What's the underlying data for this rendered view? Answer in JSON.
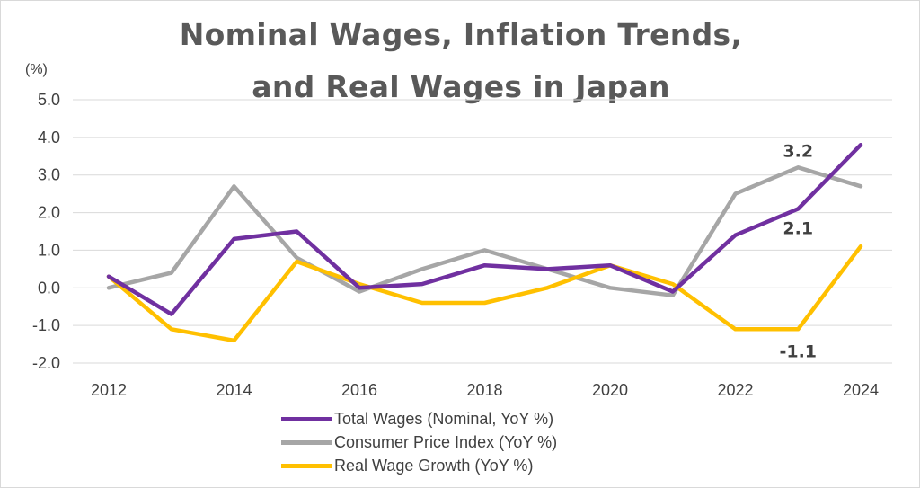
{
  "chart_data": {
    "type": "line",
    "title_line1": "Nominal Wages, Inflation Trends,",
    "title_line2": "and Real Wages in Japan",
    "ylabel": "(%)",
    "xlabel": "",
    "x": [
      2012,
      2013,
      2014,
      2015,
      2016,
      2017,
      2018,
      2019,
      2020,
      2021,
      2022,
      2023,
      2024
    ],
    "x_tick_labels": [
      "2012",
      "2014",
      "2016",
      "2018",
      "2020",
      "2022",
      "2024"
    ],
    "y_tick_labels": [
      "5.0",
      "4.0",
      "3.0",
      "2.0",
      "1.0",
      "0.0",
      "-1.0",
      "-2.0"
    ],
    "ylim": [
      -2.0,
      5.0
    ],
    "grid": true,
    "legend_position": "bottom",
    "series": [
      {
        "name": "Total Wages (Nominal, YoY %)",
        "color": "#7030a0",
        "values": [
          0.3,
          -0.7,
          1.3,
          1.5,
          0.0,
          0.1,
          0.6,
          0.5,
          0.6,
          -0.1,
          1.4,
          2.1,
          3.8
        ]
      },
      {
        "name": "Consumer Price Index (YoY %)",
        "color": "#a6a6a6",
        "values": [
          0.0,
          0.4,
          2.7,
          0.8,
          -0.1,
          0.5,
          1.0,
          0.5,
          0.0,
          -0.2,
          2.5,
          3.2,
          2.7
        ]
      },
      {
        "name": "Real Wage Growth (YoY %)",
        "color": "#ffc000",
        "values": [
          0.3,
          -1.1,
          -1.4,
          0.7,
          0.1,
          -0.4,
          -0.4,
          0.0,
          0.6,
          0.1,
          -1.1,
          -1.1,
          1.1
        ]
      }
    ],
    "annotations": [
      {
        "text": "3.2",
        "x": 2023,
        "series": 1
      },
      {
        "text": "2.1",
        "x": 2023,
        "series": 0
      },
      {
        "text": "-1.1",
        "x": 2023,
        "series": 2
      }
    ]
  }
}
